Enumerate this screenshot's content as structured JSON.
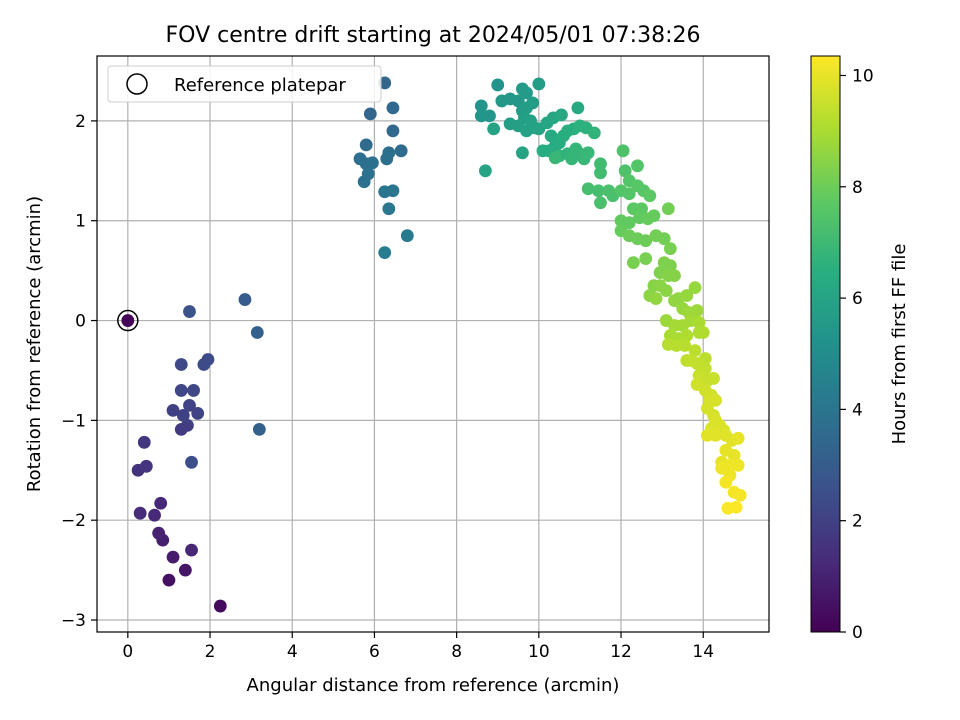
{
  "chart_data": {
    "type": "scatter",
    "title": "FOV centre drift starting at 2024/05/01 07:38:26",
    "xlabel": "Angular distance from reference (arcmin)",
    "ylabel": "Rotation from reference (arcmin)",
    "xlim": [
      -0.75,
      15.6
    ],
    "ylim": [
      -3.12,
      2.65
    ],
    "xticks": [
      "0",
      "2",
      "4",
      "6",
      "8",
      "10",
      "12",
      "14"
    ],
    "yticks": [
      "−3",
      "−2",
      "−1",
      "0",
      "1",
      "2"
    ],
    "grid": true,
    "legend": {
      "placement": "top-left",
      "entries": [
        "Reference platepar"
      ]
    },
    "reference_point": {
      "x": 0,
      "y": 0
    },
    "colorbar": {
      "label": "Hours from first FF file",
      "colormap": "viridis",
      "range": [
        0,
        10.35
      ],
      "ticks": [
        "0",
        "2",
        "4",
        "6",
        "8",
        "10"
      ]
    },
    "points_format": [
      "x",
      "y",
      "hours_from_first_ff_file"
    ],
    "points": [
      [
        0.0,
        0.0,
        0.1
      ],
      [
        2.25,
        -2.86,
        0.3
      ],
      [
        1.0,
        -2.6,
        0.5
      ],
      [
        1.4,
        -2.5,
        0.6
      ],
      [
        1.1,
        -2.37,
        0.8
      ],
      [
        0.85,
        -2.2,
        0.9
      ],
      [
        0.75,
        -2.13,
        1.0
      ],
      [
        1.55,
        -2.3,
        1.1
      ],
      [
        0.65,
        -1.95,
        1.2
      ],
      [
        0.8,
        -1.83,
        1.2
      ],
      [
        0.3,
        -1.93,
        1.3
      ],
      [
        0.25,
        -1.5,
        1.5
      ],
      [
        0.45,
        -1.46,
        1.6
      ],
      [
        0.4,
        -1.22,
        1.7
      ],
      [
        1.3,
        -1.09,
        1.8
      ],
      [
        1.45,
        -1.05,
        1.9
      ],
      [
        1.1,
        -0.9,
        2.0
      ],
      [
        1.35,
        -0.95,
        2.0
      ],
      [
        1.5,
        -0.85,
        2.1
      ],
      [
        1.7,
        -0.93,
        2.1
      ],
      [
        1.3,
        -0.7,
        2.2
      ],
      [
        1.6,
        -0.7,
        2.2
      ],
      [
        1.3,
        -0.44,
        2.3
      ],
      [
        1.85,
        -0.44,
        2.4
      ],
      [
        1.95,
        -0.39,
        2.4
      ],
      [
        1.55,
        -1.42,
        2.5
      ],
      [
        1.5,
        0.09,
        2.6
      ],
      [
        2.85,
        0.21,
        3.0
      ],
      [
        3.15,
        -0.12,
        3.1
      ],
      [
        3.2,
        -1.09,
        3.2
      ],
      [
        6.25,
        2.38,
        3.4
      ],
      [
        5.9,
        2.07,
        3.4
      ],
      [
        6.45,
        2.13,
        3.5
      ],
      [
        6.45,
        1.9,
        3.5
      ],
      [
        6.65,
        1.7,
        3.6
      ],
      [
        5.8,
        1.76,
        3.6
      ],
      [
        5.65,
        1.62,
        3.7
      ],
      [
        5.8,
        1.57,
        3.7
      ],
      [
        5.95,
        1.58,
        3.8
      ],
      [
        6.3,
        1.62,
        3.8
      ],
      [
        6.35,
        1.68,
        3.8
      ],
      [
        5.85,
        1.47,
        3.9
      ],
      [
        5.75,
        1.39,
        3.9
      ],
      [
        6.25,
        1.29,
        4.0
      ],
      [
        6.45,
        1.3,
        4.0
      ],
      [
        6.35,
        1.12,
        4.1
      ],
      [
        6.8,
        0.85,
        4.2
      ],
      [
        6.25,
        0.68,
        4.3
      ],
      [
        9.0,
        2.36,
        5.3
      ],
      [
        8.6,
        2.15,
        5.3
      ],
      [
        8.6,
        2.05,
        5.4
      ],
      [
        8.8,
        2.05,
        5.4
      ],
      [
        9.1,
        2.2,
        5.5
      ],
      [
        9.3,
        2.22,
        5.5
      ],
      [
        9.5,
        2.2,
        5.5
      ],
      [
        9.6,
        2.32,
        5.6
      ],
      [
        9.7,
        2.28,
        5.6
      ],
      [
        9.6,
        2.1,
        5.6
      ],
      [
        9.7,
        2.13,
        5.7
      ],
      [
        9.85,
        2.18,
        5.7
      ],
      [
        10.0,
        2.37,
        5.7
      ],
      [
        9.3,
        1.97,
        5.8
      ],
      [
        9.5,
        1.95,
        5.8
      ],
      [
        9.65,
        2.03,
        5.8
      ],
      [
        9.8,
        2.0,
        5.9
      ],
      [
        9.9,
        1.93,
        5.9
      ],
      [
        9.7,
        1.9,
        5.9
      ],
      [
        8.9,
        1.92,
        6.0
      ],
      [
        9.6,
        1.68,
        6.0
      ],
      [
        8.7,
        1.5,
        6.0
      ],
      [
        10.0,
        1.92,
        6.0
      ],
      [
        10.2,
        1.98,
        6.1
      ],
      [
        10.35,
        2.03,
        6.1
      ],
      [
        10.55,
        2.06,
        6.2
      ],
      [
        10.95,
        2.13,
        6.3
      ],
      [
        10.3,
        1.85,
        6.3
      ],
      [
        10.4,
        1.75,
        6.3
      ],
      [
        10.1,
        1.7,
        6.4
      ],
      [
        10.25,
        1.7,
        6.4
      ],
      [
        10.5,
        1.78,
        6.4
      ],
      [
        10.6,
        1.85,
        6.5
      ],
      [
        10.7,
        1.9,
        6.5
      ],
      [
        10.85,
        1.92,
        6.5
      ],
      [
        11.0,
        1.95,
        6.6
      ],
      [
        11.15,
        1.93,
        6.6
      ],
      [
        11.35,
        1.88,
        6.7
      ],
      [
        10.5,
        1.65,
        6.7
      ],
      [
        10.7,
        1.67,
        6.7
      ],
      [
        10.9,
        1.72,
        6.8
      ],
      [
        11.0,
        1.67,
        6.8
      ],
      [
        10.8,
        1.62,
        6.8
      ],
      [
        11.1,
        1.62,
        6.9
      ],
      [
        11.2,
        1.68,
        6.9
      ],
      [
        10.4,
        1.63,
        6.9
      ],
      [
        11.5,
        1.57,
        7.1
      ],
      [
        11.5,
        1.48,
        7.1
      ],
      [
        11.2,
        1.32,
        7.2
      ],
      [
        11.45,
        1.3,
        7.2
      ],
      [
        11.7,
        1.3,
        7.3
      ],
      [
        11.5,
        1.18,
        7.3
      ],
      [
        11.8,
        1.25,
        7.3
      ],
      [
        12.05,
        1.7,
        7.4
      ],
      [
        12.1,
        1.5,
        7.4
      ],
      [
        12.2,
        1.4,
        7.5
      ],
      [
        12.4,
        1.55,
        7.5
      ],
      [
        12.0,
        1.3,
        7.5
      ],
      [
        12.2,
        1.27,
        7.5
      ],
      [
        12.4,
        1.35,
        7.6
      ],
      [
        12.55,
        1.3,
        7.6
      ],
      [
        12.7,
        1.25,
        7.7
      ],
      [
        12.3,
        1.12,
        7.7
      ],
      [
        12.5,
        1.12,
        7.7
      ],
      [
        12.0,
        1.0,
        7.8
      ],
      [
        12.2,
        0.98,
        7.8
      ],
      [
        12.45,
        1.03,
        7.8
      ],
      [
        12.65,
        1.02,
        7.9
      ],
      [
        12.8,
        1.05,
        7.9
      ],
      [
        12.0,
        0.9,
        7.9
      ],
      [
        12.2,
        0.85,
        8.0
      ],
      [
        12.4,
        0.82,
        8.0
      ],
      [
        12.6,
        0.8,
        8.0
      ],
      [
        12.85,
        0.85,
        8.1
      ],
      [
        13.05,
        0.82,
        8.1
      ],
      [
        13.15,
        1.12,
        8.1
      ],
      [
        12.3,
        0.58,
        8.2
      ],
      [
        12.6,
        0.62,
        8.2
      ],
      [
        13.2,
        0.72,
        8.2
      ],
      [
        13.05,
        0.58,
        8.3
      ],
      [
        13.2,
        0.55,
        8.3
      ],
      [
        12.95,
        0.48,
        8.3
      ],
      [
        13.15,
        0.45,
        8.4
      ],
      [
        13.3,
        0.45,
        8.4
      ],
      [
        12.8,
        0.35,
        8.4
      ],
      [
        12.95,
        0.35,
        8.5
      ],
      [
        13.1,
        0.3,
        8.5
      ],
      [
        12.7,
        0.25,
        8.5
      ],
      [
        12.85,
        0.22,
        8.6
      ],
      [
        13.3,
        0.2,
        8.6
      ],
      [
        13.4,
        0.22,
        8.6
      ],
      [
        13.6,
        0.25,
        8.7
      ],
      [
        13.8,
        0.33,
        8.7
      ],
      [
        13.5,
        0.12,
        8.7
      ],
      [
        13.65,
        0.08,
        8.8
      ],
      [
        13.85,
        0.1,
        8.8
      ],
      [
        13.1,
        0.0,
        8.8
      ],
      [
        13.3,
        -0.05,
        8.9
      ],
      [
        13.5,
        -0.05,
        8.9
      ],
      [
        13.7,
        0.0,
        8.9
      ],
      [
        13.9,
        -0.02,
        9.0
      ],
      [
        13.2,
        -0.15,
        9.0
      ],
      [
        13.4,
        -0.18,
        9.0
      ],
      [
        13.6,
        -0.15,
        9.1
      ],
      [
        13.9,
        -0.12,
        9.1
      ],
      [
        14.0,
        -0.12,
        9.1
      ],
      [
        13.15,
        -0.24,
        9.2
      ],
      [
        13.35,
        -0.25,
        9.2
      ],
      [
        13.55,
        -0.25,
        9.2
      ],
      [
        13.8,
        -0.3,
        9.3
      ],
      [
        14.05,
        -0.38,
        9.3
      ],
      [
        13.6,
        -0.4,
        9.3
      ],
      [
        13.7,
        -0.4,
        9.4
      ],
      [
        13.85,
        -0.43,
        9.4
      ],
      [
        14.05,
        -0.48,
        9.4
      ],
      [
        13.9,
        -0.55,
        9.5
      ],
      [
        14.1,
        -0.6,
        9.5
      ],
      [
        14.25,
        -0.58,
        9.5
      ],
      [
        13.85,
        -0.64,
        9.6
      ],
      [
        14.05,
        -0.7,
        9.6
      ],
      [
        14.2,
        -0.75,
        9.6
      ],
      [
        14.15,
        -0.8,
        9.7
      ],
      [
        14.3,
        -0.8,
        9.7
      ],
      [
        14.1,
        -0.88,
        9.7
      ],
      [
        14.25,
        -0.95,
        9.7
      ],
      [
        14.3,
        -1.0,
        9.8
      ],
      [
        14.4,
        -1.05,
        9.8
      ],
      [
        14.2,
        -1.08,
        9.8
      ],
      [
        14.5,
        -1.1,
        9.8
      ],
      [
        14.1,
        -1.15,
        9.9
      ],
      [
        14.3,
        -1.15,
        9.9
      ],
      [
        14.55,
        -1.15,
        9.9
      ],
      [
        14.7,
        -1.2,
        9.9
      ],
      [
        14.85,
        -1.18,
        10.0
      ],
      [
        14.55,
        -1.3,
        10.0
      ],
      [
        14.75,
        -1.35,
        10.0
      ],
      [
        14.45,
        -1.42,
        10.0
      ],
      [
        14.65,
        -1.45,
        10.1
      ],
      [
        14.85,
        -1.45,
        10.1
      ],
      [
        14.45,
        -1.48,
        10.1
      ],
      [
        14.65,
        -1.55,
        10.1
      ],
      [
        14.55,
        -1.62,
        10.2
      ],
      [
        14.75,
        -1.72,
        10.2
      ],
      [
        14.9,
        -1.75,
        10.2
      ],
      [
        14.6,
        -1.88,
        10.3
      ],
      [
        14.8,
        -1.87,
        10.3
      ]
    ]
  }
}
